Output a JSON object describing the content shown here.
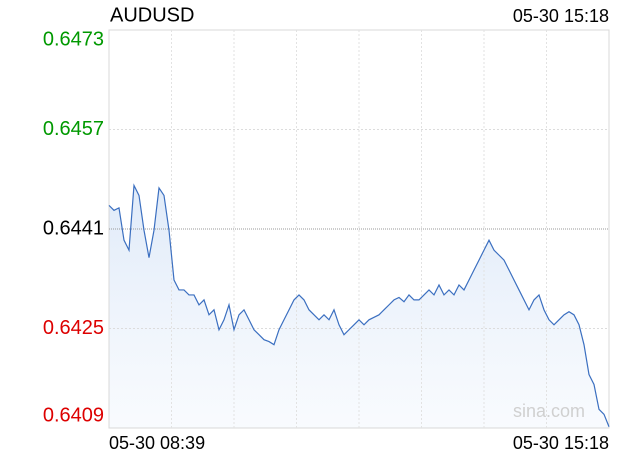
{
  "chart_data": {
    "type": "line",
    "title": "AUDUSD",
    "time": "05-30 15:18",
    "watermark": "sina.com",
    "xlabels": [
      "05-30 08:39",
      "05-30 15:18"
    ],
    "xgrid_divisions": 8,
    "ylim": [
      0.6409,
      0.6473
    ],
    "yticks": [
      0.6409,
      0.6425,
      0.6441,
      0.6457,
      0.6473
    ],
    "baseline": 0.6441,
    "up_color": "#009900",
    "down_color": "#dd0000",
    "flat_color": "#000000",
    "grid": true,
    "color": "#3b6fc0",
    "values": [
      0.64448,
      0.6444,
      0.64444,
      0.64392,
      0.64376,
      0.6448,
      0.64464,
      0.64408,
      0.64364,
      0.64408,
      0.64476,
      0.64464,
      0.64408,
      0.64328,
      0.64312,
      0.64312,
      0.64304,
      0.64304,
      0.64288,
      0.64296,
      0.64272,
      0.6428,
      0.64248,
      0.64264,
      0.64288,
      0.64248,
      0.64272,
      0.6428,
      0.64264,
      0.64248,
      0.6424,
      0.64232,
      0.64229,
      0.64224,
      0.64248,
      0.64264,
      0.6428,
      0.64296,
      0.64304,
      0.64296,
      0.6428,
      0.64272,
      0.64264,
      0.64272,
      0.64264,
      0.6428,
      0.64256,
      0.6424,
      0.64248,
      0.64256,
      0.64264,
      0.64256,
      0.64264,
      0.64268,
      0.64272,
      0.6428,
      0.64288,
      0.64296,
      0.643,
      0.64293,
      0.64304,
      0.64296,
      0.64296,
      0.64304,
      0.64312,
      0.64304,
      0.6432,
      0.64304,
      0.64312,
      0.64304,
      0.6432,
      0.64312,
      0.64328,
      0.64344,
      0.6436,
      0.64376,
      0.64392,
      0.64376,
      0.64368,
      0.6436,
      0.64344,
      0.64328,
      0.64312,
      0.64296,
      0.6428,
      0.64296,
      0.64304,
      0.6428,
      0.64264,
      0.64256,
      0.64264,
      0.64272,
      0.64277,
      0.64272,
      0.64256,
      0.64224,
      0.64176,
      0.6416,
      0.6412,
      0.64112,
      0.64092
    ]
  }
}
